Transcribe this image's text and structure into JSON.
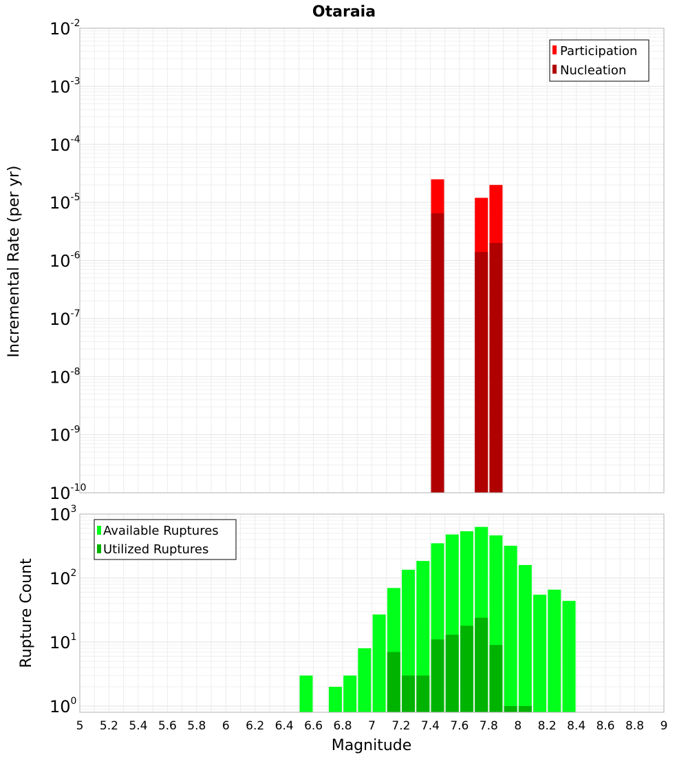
{
  "title": "Otaraia",
  "chart_data": [
    {
      "type": "bar",
      "ylabel": "Incremental Rate (per yr)",
      "yscale": "log",
      "ylim": [
        1e-10,
        0.01
      ],
      "xlim": [
        5,
        9
      ],
      "grid": true,
      "legend_position": "top-right",
      "legend": [
        "Participation",
        "Nucleation"
      ],
      "colors": {
        "Participation": "#ff0000",
        "Nucleation": "#b00000"
      },
      "x": [
        7.45,
        7.75,
        7.85
      ],
      "series": [
        {
          "name": "Participation",
          "values": [
            2.5e-05,
            1.2e-05,
            2e-05
          ]
        },
        {
          "name": "Nucleation",
          "values": [
            6.5e-06,
            1.4e-06,
            2e-06
          ]
        }
      ],
      "y_ticks": [
        {
          "base": "10",
          "exp": "-2"
        },
        {
          "base": "10",
          "exp": "-3"
        },
        {
          "base": "10",
          "exp": "-4"
        },
        {
          "base": "10",
          "exp": "-5"
        },
        {
          "base": "10",
          "exp": "-6"
        },
        {
          "base": "10",
          "exp": "-7"
        },
        {
          "base": "10",
          "exp": "-8"
        },
        {
          "base": "10",
          "exp": "-9"
        },
        {
          "base": "10",
          "exp": "-10"
        }
      ]
    },
    {
      "type": "bar",
      "xlabel": "Magnitude",
      "ylabel": "Rupture Count",
      "yscale": "log",
      "ylim": [
        0.8,
        1000
      ],
      "xlim": [
        5,
        9
      ],
      "grid": true,
      "legend_position": "top-left",
      "legend": [
        "Available Ruptures",
        "Utilized Ruptures"
      ],
      "colors": {
        "Available Ruptures": "#00ff1a",
        "Utilized Ruptures": "#00b300"
      },
      "x": [
        6.55,
        6.75,
        6.85,
        6.95,
        7.05,
        7.15,
        7.25,
        7.35,
        7.45,
        7.55,
        7.65,
        7.75,
        7.85,
        7.95,
        8.05,
        8.15,
        8.25,
        8.35
      ],
      "series": [
        {
          "name": "Available Ruptures",
          "values": [
            3,
            2,
            3,
            8,
            27,
            70,
            135,
            185,
            350,
            480,
            540,
            630,
            465,
            320,
            160,
            55,
            66,
            44
          ]
        },
        {
          "name": "Utilized Ruptures",
          "values": [
            0,
            0,
            0,
            0,
            0,
            7,
            3,
            3,
            11,
            13,
            18,
            24,
            9,
            1,
            1,
            0,
            0,
            0
          ]
        }
      ],
      "y_ticks": [
        {
          "base": "10",
          "exp": "3"
        },
        {
          "base": "10",
          "exp": "2"
        },
        {
          "base": "10",
          "exp": "1"
        },
        {
          "base": "10",
          "exp": "0"
        }
      ],
      "x_ticks": [
        "5",
        "5.2",
        "5.4",
        "5.6",
        "5.8",
        "6",
        "6.2",
        "6.4",
        "6.6",
        "6.8",
        "7",
        "7.2",
        "7.4",
        "7.6",
        "7.8",
        "8",
        "8.2",
        "8.4",
        "8.6",
        "8.8",
        "9"
      ]
    }
  ]
}
